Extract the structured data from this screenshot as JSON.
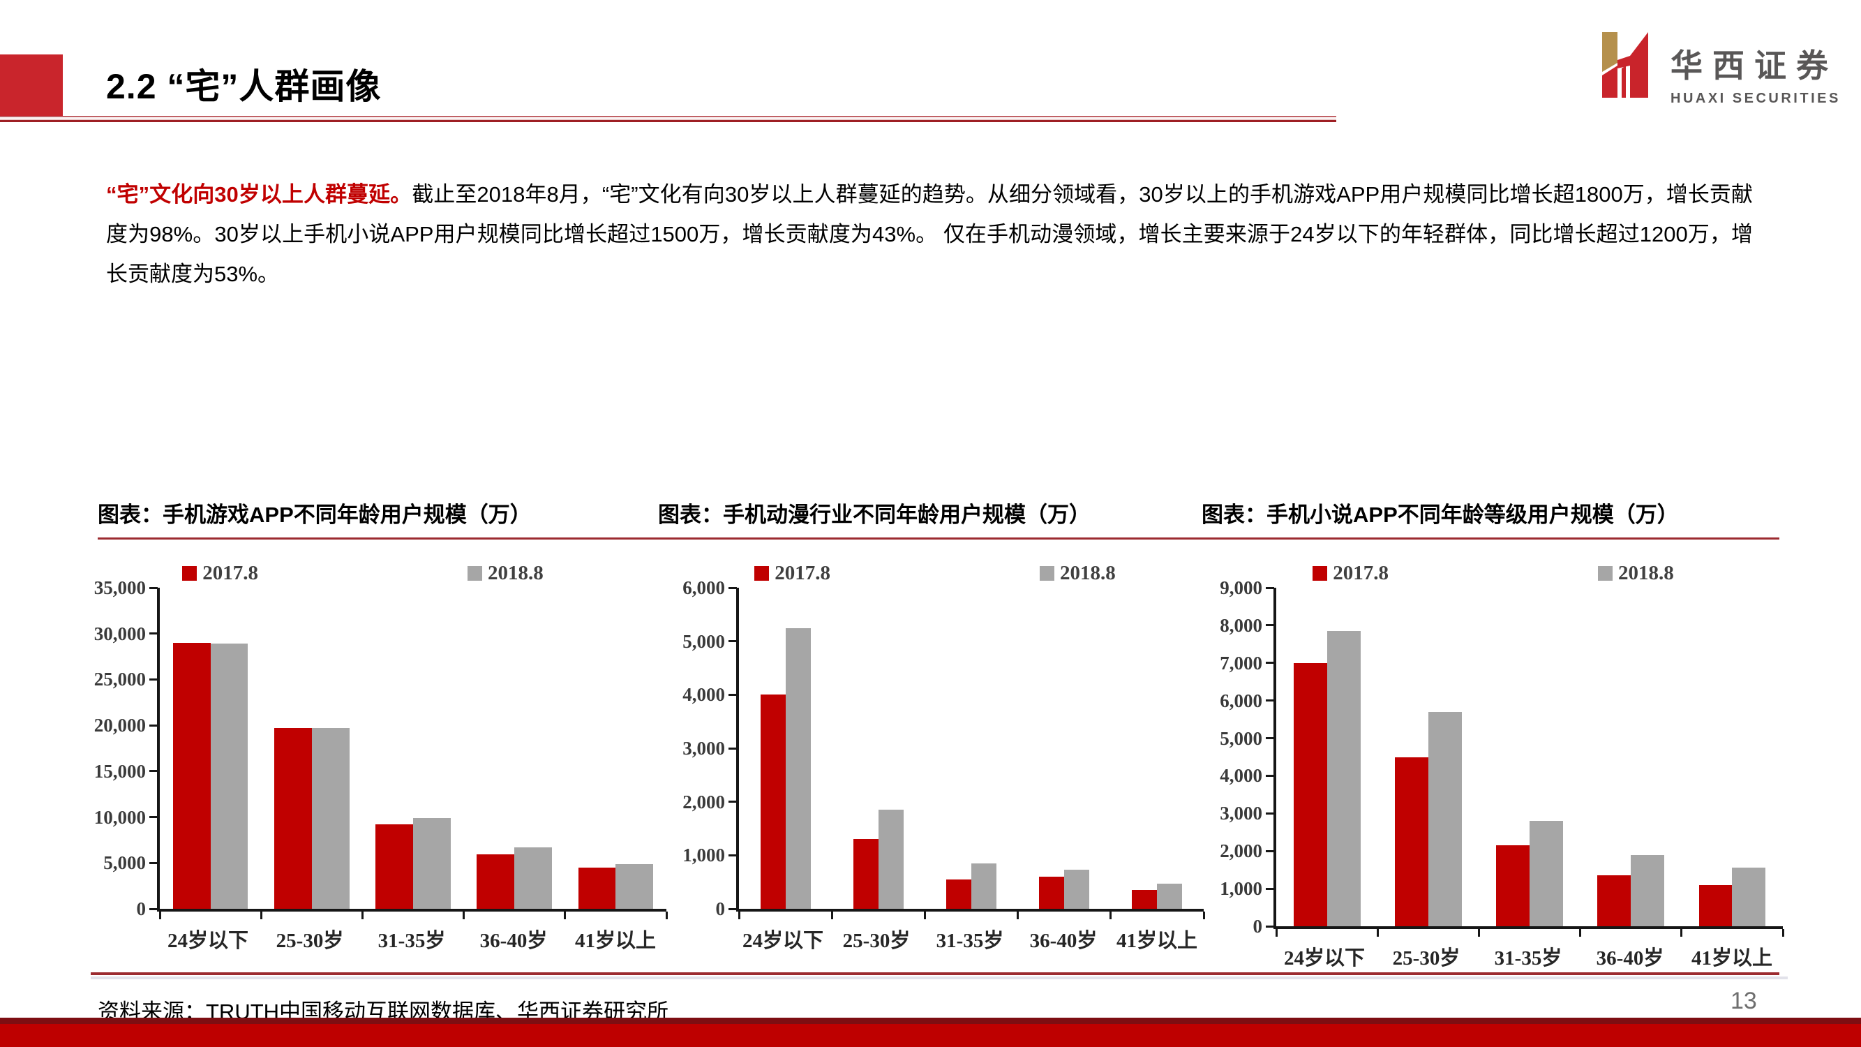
{
  "header": {
    "section_title": "2.2 “宅”人群画像"
  },
  "logo": {
    "name_cn": "华西证券",
    "name_en": "HUAXI SECURITIES"
  },
  "intro": {
    "highlight": "“宅”文化向30岁以上人群蔓延。",
    "body": "截止至2018年8月，“宅”文化有向30岁以上人群蔓延的趋势。从细分领域看，30岁以上的手机游戏APP用户规模同比增长超1800万，增长贡献度为98%。30岁以上手机小说APP用户规模同比增长超过1500万，增长贡献度为43%。 仅在手机动漫领域，增长主要来源于24岁以下的年轻群体，同比增长超过1200万，增长贡献度为53%。"
  },
  "footer": {
    "source": "资料来源：TRUTH中国移动互联网数据库、华西证券研究所",
    "page_number": "13"
  },
  "colors": {
    "accent_red": "#C00000",
    "bar_red": "#C00000",
    "bar_gray": "#A6A6A6",
    "rule_dark_red": "#9C2B30",
    "logo_gold": "#B5904C",
    "logo_red": "#C9242B"
  },
  "chart_data": [
    {
      "type": "bar",
      "title": "图表：手机游戏APP不同年龄用户规模（万）",
      "categories": [
        "24岁以下",
        "25-30岁",
        "31-35岁",
        "36-40岁",
        "41岁以上"
      ],
      "series": [
        {
          "name": "2017.8",
          "color_key": "bar_red",
          "values": [
            29000,
            19700,
            9200,
            5900,
            4500
          ]
        },
        {
          "name": "2018.8",
          "color_key": "bar_gray",
          "values": [
            28900,
            19700,
            9900,
            6700,
            4900
          ]
        }
      ],
      "xlabel": "",
      "ylabel": "",
      "ylim": [
        0,
        35000
      ],
      "ystep": 5000,
      "grid": false,
      "legend_position": "top"
    },
    {
      "type": "bar",
      "title": "图表：手机动漫行业不同年龄用户规模（万）",
      "categories": [
        "24岁以下",
        "25-30岁",
        "31-35岁",
        "36-40岁",
        "41岁以上"
      ],
      "series": [
        {
          "name": "2017.8",
          "color_key": "bar_red",
          "values": [
            4000,
            1300,
            550,
            600,
            350
          ]
        },
        {
          "name": "2018.8",
          "color_key": "bar_gray",
          "values": [
            5250,
            1850,
            850,
            730,
            470
          ]
        }
      ],
      "xlabel": "",
      "ylabel": "",
      "ylim": [
        0,
        6000
      ],
      "ystep": 1000,
      "grid": false,
      "legend_position": "top"
    },
    {
      "type": "bar",
      "title": "图表：手机小说APP不同年龄等级用户规模（万）",
      "categories": [
        "24岁以下",
        "25-30岁",
        "31-35岁",
        "36-40岁",
        "41岁以上"
      ],
      "series": [
        {
          "name": "2017.8",
          "color_key": "bar_red",
          "values": [
            7000,
            4500,
            2150,
            1350,
            1100
          ]
        },
        {
          "name": "2018.8",
          "color_key": "bar_gray",
          "values": [
            7850,
            5700,
            2800,
            1900,
            1550
          ]
        }
      ],
      "xlabel": "",
      "ylabel": "",
      "ylim": [
        0,
        9000
      ],
      "ystep": 1000,
      "grid": false,
      "legend_position": "top"
    }
  ]
}
